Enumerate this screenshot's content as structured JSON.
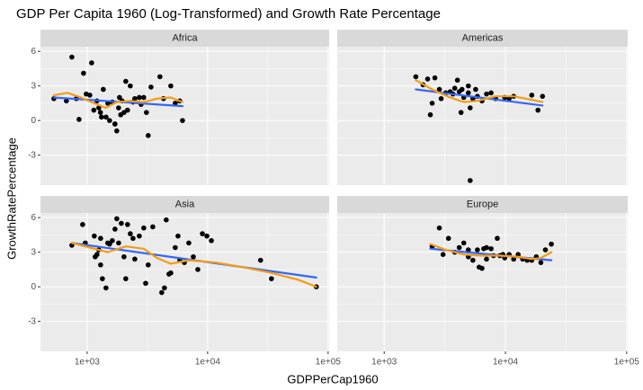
{
  "chart_data": {
    "type": "scatter",
    "title": "GDP Per Capita 1960 (Log-Transformed) and Growth Rate Percentage",
    "x_label": "GDPPerCap1960",
    "y_label": "GrowthRatePercentage",
    "log_x": true,
    "grid": true,
    "xlim": [
      410,
      102000
    ],
    "ylim": [
      -5.6,
      6.4
    ],
    "xticks": [
      {
        "value": 1000,
        "label": "1e+03"
      },
      {
        "value": 10000,
        "label": "1e+04"
      },
      {
        "value": 100000,
        "label": "1e+05"
      }
    ],
    "yticks": [
      -3,
      0,
      3,
      6
    ],
    "panels": [
      {
        "label": "Africa",
        "series": [
          {
            "kind": "points",
            "color": "#000000",
            "x": [
              530,
              747,
              814,
              934,
              983,
              1053,
              1090,
              1137,
              1206,
              1250,
              1290,
              1316,
              1362,
              1435,
              1484,
              1536,
              1618,
              1704,
              1762,
              1824,
              1856,
              1953,
              2093,
              2165,
              2282,
              2403,
              2487,
              2711,
              2805,
              2950,
              3105,
              3214,
              3390,
              4020,
              4305,
              4947,
              5386,
              5870,
              6190,
              857,
              673,
              2024,
              1700,
              1900
            ],
            "values": [
              1.9,
              5.5,
              1.9,
              4.1,
              2.3,
              2.2,
              5.0,
              0.9,
              1.7,
              1.1,
              0.7,
              0.3,
              2.7,
              0.3,
              1.5,
              0.0,
              1.6,
              -0.3,
              -0.9,
              1.1,
              2.0,
              1.7,
              3.4,
              0.9,
              3.0,
              1.6,
              1.9,
              2.0,
              1.4,
              2.0,
              0.7,
              -1.3,
              2.9,
              3.8,
              1.9,
              3.0,
              1.5,
              1.7,
              0.0,
              0.1,
              1.7,
              0.7,
              -0.3,
              0.5
            ]
          },
          {
            "kind": "line",
            "color": "#3366ff",
            "x": [
              530,
              6190
            ],
            "values": [
              2.0,
              1.25
            ]
          },
          {
            "kind": "line",
            "color": "#f39c12",
            "x": [
              530,
              686,
              886,
              1145,
              1430,
              1760,
              2280,
              2950,
              3800,
              4950,
              6190
            ],
            "values": [
              2.2,
              2.4,
              2.0,
              1.5,
              1.1,
              1.6,
              1.7,
              1.6,
              1.9,
              2.0,
              1.6
            ]
          }
        ]
      },
      {
        "label": "Americas",
        "series": [
          {
            "kind": "points",
            "color": "#000000",
            "x": [
              1824,
              2093,
              2282,
              2403,
              2487,
              2618,
              2852,
              2950,
              3214,
              3504,
              3690,
              3820,
              4020,
              4160,
              4305,
              4535,
              4947,
              5119,
              5390,
              5680,
              5875,
              6407,
              6983,
              7617,
              8300,
              9864,
              10733,
              11695,
              16492,
              18558,
              20223,
              5119,
              4947,
              4384
            ],
            "values": [
              3.8,
              3.1,
              3.6,
              0.5,
              1.5,
              3.7,
              2.7,
              1.9,
              2.4,
              2.5,
              2.3,
              2.8,
              3.5,
              2.5,
              0.7,
              2.0,
              3.0,
              1.1,
              1.9,
              2.7,
              2.1,
              1.7,
              2.3,
              2.4,
              1.9,
              2.0,
              1.9,
              2.1,
              2.2,
              0.9,
              2.1,
              -5.2,
              2.4,
              2.7
            ]
          },
          {
            "kind": "line",
            "color": "#3366ff",
            "x": [
              1824,
              20223
            ],
            "values": [
              2.7,
              1.3
            ]
          },
          {
            "kind": "line",
            "color": "#f39c12",
            "x": [
              1824,
              2487,
              3504,
              4535,
              5875,
              8300,
              11695,
              16492,
              20223
            ],
            "values": [
              3.5,
              2.7,
              2.0,
              1.6,
              1.7,
              2.1,
              2.1,
              1.8,
              1.6
            ]
          }
        ]
      },
      {
        "label": "Asia",
        "series": [
          {
            "kind": "points",
            "color": "#000000",
            "x": [
              747,
              918,
              966,
              1147,
              1167,
              1208,
              1250,
              1294,
              1339,
              1434,
              1484,
              1536,
              1618,
              1704,
              1763,
              1825,
              1922,
              2023,
              2093,
              2166,
              2282,
              2403,
              2487,
              2710,
              2952,
              3508,
              4161,
              4382,
              4535,
              4775,
              4947,
              5386,
              5679,
              5875,
              6411,
              6980,
              7609,
              8297,
              9050,
              9860,
              10745,
              27520,
              33870,
              79840,
              1294,
              3060,
              3214
            ],
            "values": [
              3.6,
              5.4,
              3.8,
              4.4,
              2.6,
              2.8,
              3.2,
              4.2,
              0.7,
              -0.1,
              3.8,
              3.7,
              4.0,
              5.0,
              5.9,
              3.8,
              5.5,
              2.6,
              0.7,
              5.4,
              4.6,
              4.2,
              2.4,
              4.4,
              5.1,
              5.2,
              -0.5,
              -0.1,
              5.8,
              1.1,
              1.2,
              3.4,
              4.4,
              2.3,
              2.1,
              3.8,
              2.6,
              1.5,
              4.6,
              4.4,
              4.0,
              2.3,
              0.7,
              0.0,
              1.9,
              0.3,
              1.9
            ]
          },
          {
            "kind": "line",
            "color": "#3366ff",
            "x": [
              747,
              79840
            ],
            "values": [
              3.8,
              0.8
            ]
          },
          {
            "kind": "line",
            "color": "#f39c12",
            "x": [
              747,
              1053,
              1484,
              2093,
              2950,
              3800,
              4947,
              6980,
              11700,
              19600,
              33870,
              56800,
              79840
            ],
            "values": [
              3.8,
              3.4,
              3.0,
              3.5,
              3.3,
              2.5,
              2.0,
              2.3,
              2.1,
              1.7,
              1.2,
              0.6,
              0.0
            ]
          }
        ]
      },
      {
        "label": "Europe",
        "series": [
          {
            "kind": "points",
            "color": "#000000",
            "x": [
              2487,
              2852,
              3060,
              3390,
              3820,
              4160,
              4535,
              4947,
              5390,
              5875,
              6070,
              6410,
              6983,
              7617,
              7975,
              8570,
              9000,
              9864,
              10733,
              11695,
              12735,
              13875,
              15123,
              16492,
              17970,
              19600,
              21370,
              23920,
              6983,
              4947,
              6630,
              9530
            ],
            "values": [
              3.5,
              5.1,
              2.8,
              4.2,
              3.0,
              3.4,
              3.8,
              2.6,
              2.3,
              3.2,
              1.7,
              1.6,
              2.4,
              3.3,
              2.7,
              4.2,
              2.7,
              2.5,
              2.8,
              2.4,
              2.8,
              2.4,
              2.3,
              2.3,
              2.6,
              2.1,
              3.2,
              3.7,
              3.4,
              3.2,
              3.3,
              2.8
            ]
          },
          {
            "kind": "line",
            "color": "#3366ff",
            "x": [
              2403,
              23920
            ],
            "values": [
              3.3,
              2.3
            ]
          },
          {
            "kind": "line",
            "color": "#f39c12",
            "x": [
              2403,
              3225,
              4535,
              6410,
              9000,
              12735,
              16492,
              19600,
              23920
            ],
            "values": [
              3.7,
              3.2,
              2.8,
              2.7,
              2.7,
              2.6,
              2.4,
              2.5,
              3.0
            ]
          }
        ]
      }
    ]
  }
}
